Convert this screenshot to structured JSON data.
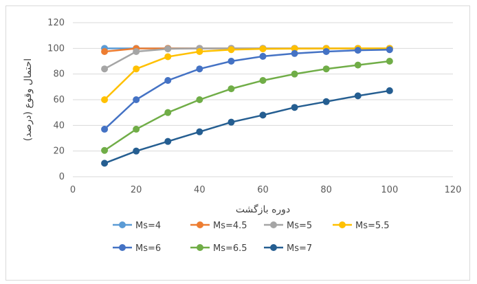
{
  "chart_data": {
    "type": "line",
    "xlabel": "دوره بازگشت",
    "ylabel": "احتمال وقوع (درصد)",
    "xlim": [
      0,
      120
    ],
    "ylim": [
      0,
      120
    ],
    "x_ticks": [
      "0",
      "20",
      "40",
      "60",
      "80",
      "100",
      "120"
    ],
    "y_ticks": [
      "0",
      "20",
      "40",
      "60",
      "80",
      "100",
      "120"
    ],
    "grid": "horizontal",
    "legend_position": "bottom",
    "x": [
      10,
      20,
      30,
      40,
      50,
      60,
      70,
      80,
      90,
      100
    ],
    "series": [
      {
        "name": "Ms=4",
        "color": "#5b9bd5",
        "values": [
          100,
          100,
          100,
          100,
          100,
          100,
          100,
          100,
          100,
          100
        ]
      },
      {
        "name": "Ms=4.5",
        "color": "#ed7d31",
        "values": [
          97.5,
          99.9,
          100,
          100,
          100,
          100,
          100,
          100,
          100,
          100
        ]
      },
      {
        "name": "Ms=5",
        "color": "#a5a5a5",
        "values": [
          84,
          97.5,
          99.6,
          100,
          100,
          100,
          100,
          100,
          100,
          100
        ]
      },
      {
        "name": "Ms=5.5",
        "color": "#ffc000",
        "values": [
          60,
          84,
          93.5,
          97.5,
          99,
          99.6,
          99.8,
          99.9,
          100,
          100
        ]
      },
      {
        "name": "Ms=6",
        "color": "#4472c4",
        "values": [
          37,
          60,
          75,
          84,
          90,
          93.8,
          96,
          97.5,
          98.5,
          99
        ]
      },
      {
        "name": "Ms=6.5",
        "color": "#70ad47",
        "values": [
          20.5,
          37,
          50,
          60,
          68.5,
          75,
          80,
          84,
          87,
          90
        ]
      },
      {
        "name": "Ms=7",
        "color": "#255e91",
        "values": [
          10.5,
          20,
          27.5,
          35,
          42.5,
          48,
          54,
          58.5,
          63,
          67
        ]
      }
    ]
  }
}
